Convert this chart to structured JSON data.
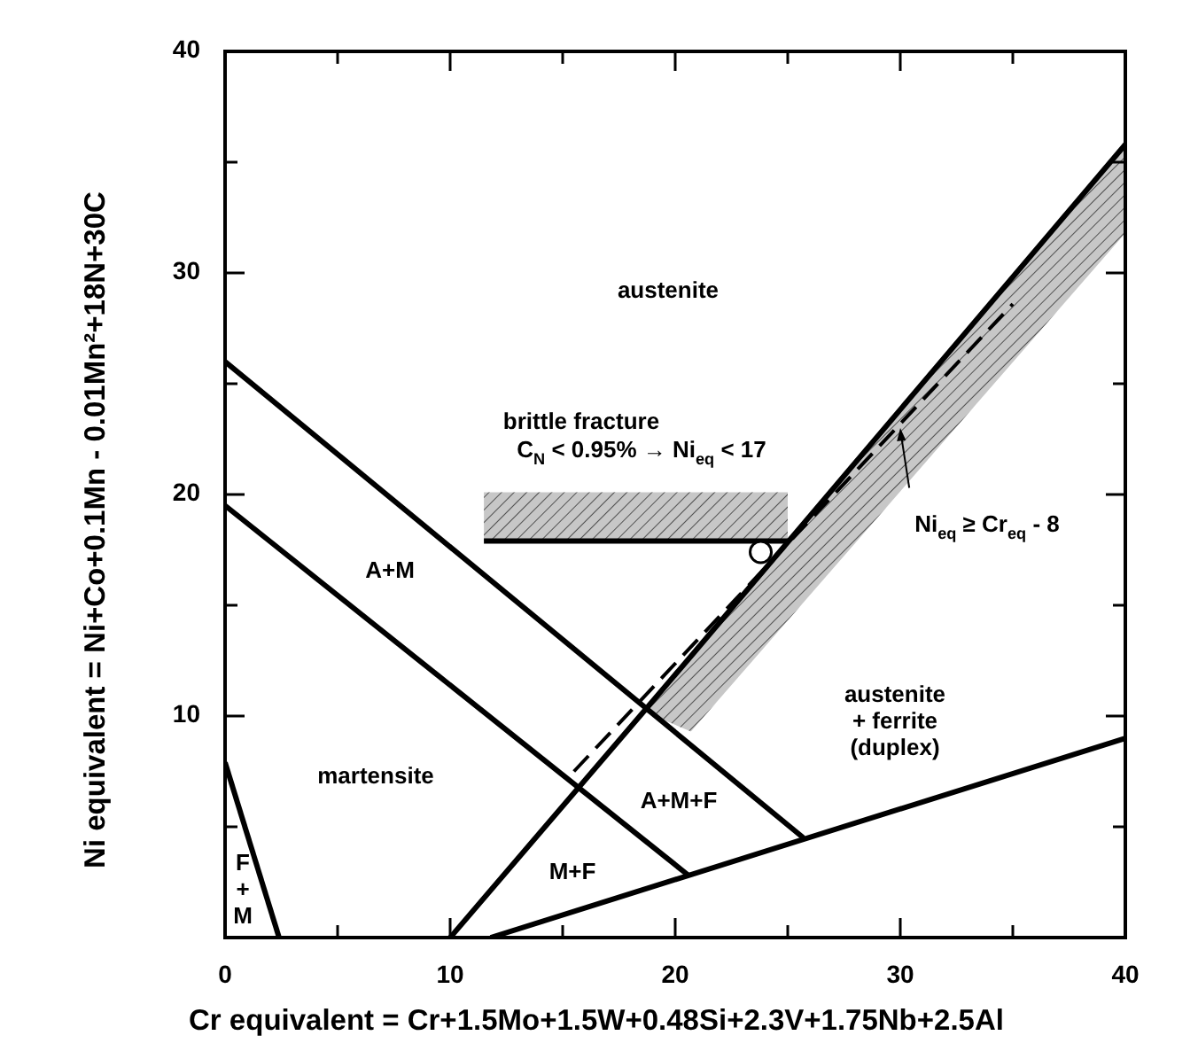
{
  "chart_data": {
    "type": "line",
    "xlabel": "Cr  equivalent  =  Cr+1.5Mo+1.5W+0.48Si+2.3V+1.75Nb+2.5Al",
    "ylabel": "Ni  equivalent  =  Ni+Co+0.1Mn - 0.01Mn²+18N+30C",
    "xlim": [
      0,
      40
    ],
    "ylim": [
      0,
      40
    ],
    "xticks": [
      0,
      {
        "value": 5,
        "label": null
      },
      10,
      {
        "value": 15,
        "label": null
      },
      20,
      {
        "value": 25,
        "label": null
      },
      30,
      {
        "value": 35,
        "label": null
      },
      40
    ],
    "yticks": [
      {
        "value": 0,
        "label": null
      },
      {
        "value": 5,
        "label": null
      },
      10,
      {
        "value": 15,
        "label": null
      },
      20,
      {
        "value": 25,
        "label": null
      },
      30,
      {
        "value": 35,
        "label": null
      },
      40
    ],
    "grid": false,
    "series": [
      {
        "color": "#000000",
        "x": [
          11.5,
          25.0
        ],
        "values": [
          17.9,
          17.9
        ],
        "lower": [
          17.9,
          17.9
        ],
        "upper": [
          20.1,
          20.1
        ]
      },
      {
        "color": "#000000",
        "x": [
          0,
          25.7
        ],
        "values": [
          26,
          4.5
        ]
      },
      {
        "color": "#000000",
        "x": [
          0,
          20.6
        ],
        "values": [
          19.5,
          2.8
        ]
      },
      {
        "color": "#000000",
        "x": [
          0,
          2.4
        ],
        "values": [
          7.9,
          0
        ]
      },
      {
        "color": "#000000",
        "x": [
          10,
          18.6,
          20.7,
          40
        ],
        "values": [
          0,
          10.2,
          12.7,
          35.8
        ],
        "lower": [
          null,
          10.2,
          9.3,
          31.8
        ],
        "upper": [
          null,
          10.2,
          12.7,
          35.8
        ]
      },
      {
        "color": "#000000",
        "x": [
          11.8,
          40
        ],
        "values": [
          0,
          9
        ]
      },
      {
        "color": "#000000",
        "line_style": "dashed",
        "x": [
          15.5,
          35
        ],
        "values": [
          7.5,
          28.6
        ]
      },
      {
        "type": "scatter",
        "color": "#000000",
        "marker": "circle",
        "x": [
          23.8
        ],
        "values": [
          17.4
        ]
      }
    ],
    "annotations": [
      "austenite",
      "brittle fracture",
      "C$_{N}$ < 0.95% → Ni$_{eq}$ < 17",
      "Ni$_{eq}$ ≥ Cr$_{eq}$ - 8",
      "A+M",
      "martensite",
      "F\n+\nM",
      "M+F",
      "A+M+F",
      "austenite\n+ ferrite\n(duplex)"
    ]
  }
}
